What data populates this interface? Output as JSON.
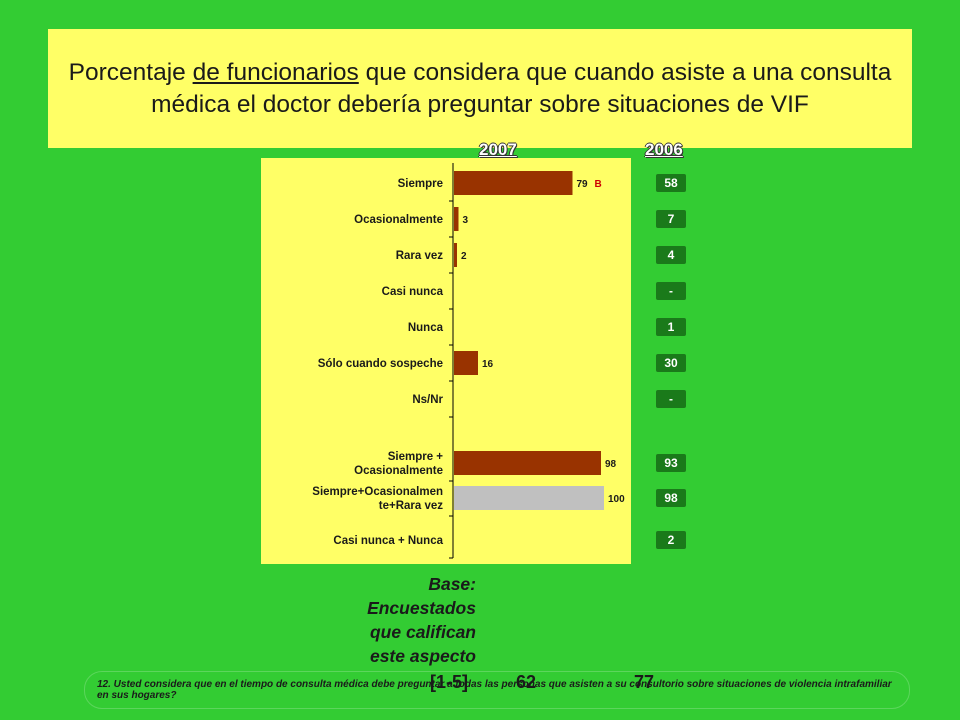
{
  "title": {
    "before": "Porcentaje ",
    "underlined": "de funcionarios",
    "after": " que considera que cuando asiste a una consulta médica el doctor debería preguntar sobre situaciones de VIF"
  },
  "years": {
    "current": "2007",
    "previous": "2006"
  },
  "chart_data": {
    "type": "bar",
    "orientation": "horizontal",
    "xlim": [
      0,
      100
    ],
    "categories": [
      "Siempre",
      "Ocasionalmente",
      "Rara vez",
      "Casi nunca",
      "Nunca",
      "Sólo cuando sospeche",
      "Ns/Nr",
      "Siempre + Ocasionalmente",
      "Siempre+Ocasionalmente+Rara vez",
      "Casi nunca + Nunca"
    ],
    "category_lines": [
      [
        "Siempre"
      ],
      [
        "Ocasionalmente"
      ],
      [
        "Rara vez"
      ],
      [
        "Casi nunca"
      ],
      [
        "Nunca"
      ],
      [
        "Sólo cuando sospeche"
      ],
      [
        "Ns/Nr"
      ],
      [
        "Siempre +",
        "Ocasionalmente"
      ],
      [
        "Siempre+Ocasionalmen",
        "te+Rara vez"
      ],
      [
        "Casi nunca + Nunca"
      ]
    ],
    "series": [
      {
        "name": "2007",
        "values": [
          79,
          3,
          2,
          null,
          null,
          16,
          null,
          98,
          100,
          null
        ],
        "labels": [
          "79",
          "3",
          "2",
          "",
          "",
          "16",
          "",
          "98",
          "100",
          ""
        ],
        "colors": [
          "#993300",
          "#993300",
          "#993300",
          "#993300",
          "#993300",
          "#993300",
          "#993300",
          "#993300",
          "#c0c0c0",
          "#993300"
        ]
      }
    ],
    "annotations": [
      {
        "category": "Siempre",
        "text": "B",
        "color": "#cc0000"
      }
    ],
    "comparison_2006": [
      "58",
      "7",
      "4",
      "-",
      "1",
      "30",
      "-",
      "93",
      "98",
      "2"
    ]
  },
  "base": {
    "label_lines": [
      "Base:",
      "Encuestados",
      "que califican",
      "este aspecto"
    ],
    "range": "[1-5]",
    "n_2007": "62",
    "n_2006": "77"
  },
  "footnote": "12. Usted considera que en el tiempo de consulta médica debe preguntar a todas las personas que asisten a su consultorio sobre situaciones de violencia intrafamiliar en sus hogares?"
}
